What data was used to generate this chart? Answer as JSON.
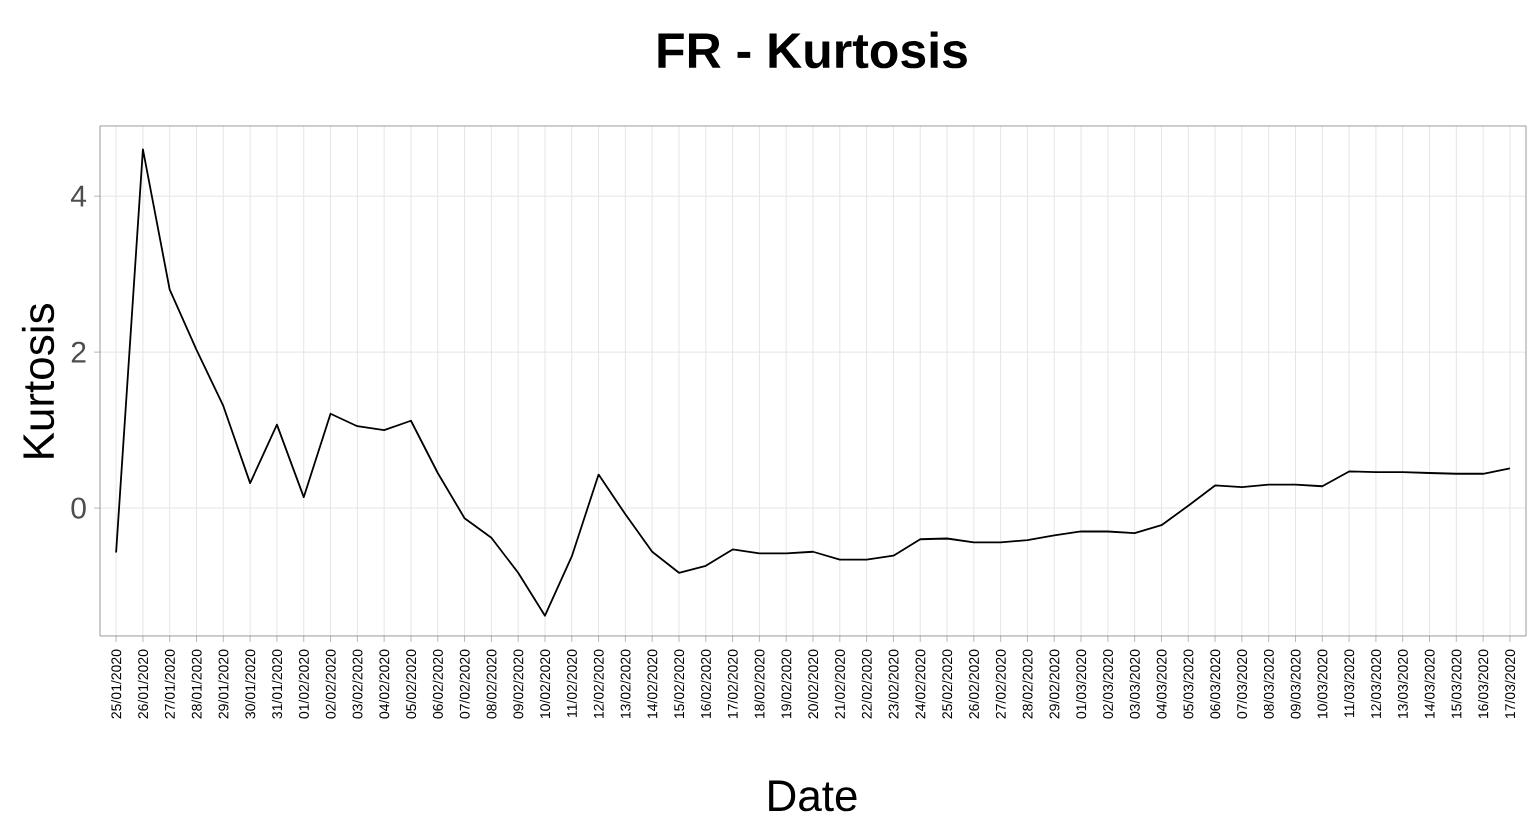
{
  "chart_data": {
    "type": "line",
    "title": "FR - Kurtosis",
    "xlabel": "Date",
    "ylabel": "Kurtosis",
    "categories": [
      "25/01/2020",
      "26/01/2020",
      "27/01/2020",
      "28/01/2020",
      "29/01/2020",
      "30/01/2020",
      "31/01/2020",
      "01/02/2020",
      "02/02/2020",
      "03/02/2020",
      "04/02/2020",
      "05/02/2020",
      "06/02/2020",
      "07/02/2020",
      "08/02/2020",
      "09/02/2020",
      "10/02/2020",
      "11/02/2020",
      "12/02/2020",
      "13/02/2020",
      "14/02/2020",
      "15/02/2020",
      "16/02/2020",
      "17/02/2020",
      "18/02/2020",
      "19/02/2020",
      "20/02/2020",
      "21/02/2020",
      "22/02/2020",
      "23/02/2020",
      "24/02/2020",
      "25/02/2020",
      "26/02/2020",
      "27/02/2020",
      "28/02/2020",
      "29/02/2020",
      "01/03/2020",
      "02/03/2020",
      "03/03/2020",
      "04/03/2020",
      "05/03/2020",
      "06/03/2020",
      "07/03/2020",
      "08/03/2020",
      "09/03/2020",
      "10/03/2020",
      "11/03/2020",
      "12/03/2020",
      "13/03/2020",
      "14/03/2020",
      "15/03/2020",
      "16/03/2020",
      "17/03/2020"
    ],
    "series": [
      {
        "color": "#000000",
        "values": [
          -0.57,
          4.6,
          2.8,
          2.03,
          1.31,
          0.32,
          1.07,
          0.14,
          1.21,
          1.05,
          1.0,
          1.12,
          0.45,
          -0.13,
          -0.38,
          -0.83,
          -1.38,
          -0.62,
          0.43,
          -0.08,
          -0.56,
          -0.83,
          -0.74,
          -0.53,
          -0.58,
          -0.58,
          -0.56,
          -0.66,
          -0.66,
          -0.61,
          -0.4,
          -0.39,
          -0.44,
          -0.44,
          -0.41,
          -0.35,
          -0.3,
          -0.3,
          -0.32,
          -0.22,
          0.03,
          0.29,
          0.27,
          0.3,
          0.3,
          0.28,
          0.47,
          0.46,
          0.46,
          0.45,
          0.44,
          0.44,
          0.51
        ]
      }
    ],
    "ylim": [
      -1.64,
      4.9
    ],
    "yticks": [
      0,
      2,
      4
    ],
    "grid": true,
    "marker": "none",
    "line_style": "solid"
  }
}
